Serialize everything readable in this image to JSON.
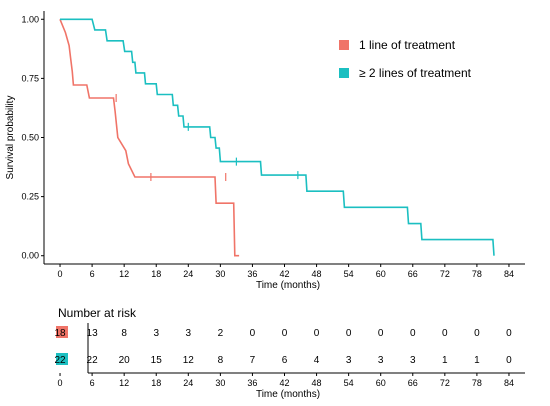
{
  "chart_data": [
    {
      "type": "line",
      "subtype": "kaplan-meier",
      "xlabel": "Time (months)",
      "ylabel": "Survival probability",
      "xlim": [
        -3,
        87
      ],
      "ylim": [
        -0.035,
        1.035
      ],
      "x_ticks": [
        0,
        6,
        12,
        18,
        24,
        30,
        36,
        42,
        48,
        54,
        60,
        66,
        72,
        78,
        84
      ],
      "y_ticks": [
        0.0,
        0.25,
        0.5,
        0.75,
        1.0
      ],
      "y_tick_labels": [
        "0.00",
        "0.25",
        "0.50",
        "0.75",
        "1.00"
      ],
      "grid": false,
      "legend": "top-right",
      "series": [
        {
          "name": "1 line of treatment",
          "color": "#f07468",
          "points": [
            [
              0,
              1.0
            ],
            [
              1,
              0.944
            ],
            [
              1.7,
              0.889
            ],
            [
              2,
              0.833
            ],
            [
              2.3,
              0.778
            ],
            [
              2.5,
              0.722
            ],
            [
              5,
              0.722
            ],
            [
              5.5,
              0.667
            ],
            [
              10,
              0.667
            ],
            [
              10.3,
              0.611
            ],
            [
              10.8,
              0.5
            ],
            [
              12.3,
              0.444
            ],
            [
              12.8,
              0.389
            ],
            [
              14,
              0.333
            ],
            [
              29,
              0.333
            ],
            [
              29.2,
              0.222
            ],
            [
              32.5,
              0.222
            ],
            [
              32.7,
              0.0
            ],
            [
              33.5,
              0.0
            ]
          ],
          "censor": [
            [
              10.5,
              0.667
            ],
            [
              17,
              0.333
            ],
            [
              31,
              0.333
            ]
          ]
        },
        {
          "name": "≥ 2 lines of treatment",
          "color": "#1bbfc1",
          "points": [
            [
              0,
              1.0
            ],
            [
              6,
              1.0
            ],
            [
              6.5,
              0.955
            ],
            [
              8.5,
              0.955
            ],
            [
              8.8,
              0.909
            ],
            [
              11.8,
              0.909
            ],
            [
              12.1,
              0.864
            ],
            [
              13.4,
              0.864
            ],
            [
              13.6,
              0.818
            ],
            [
              14,
              0.818
            ],
            [
              14.2,
              0.773
            ],
            [
              15.8,
              0.773
            ],
            [
              16,
              0.727
            ],
            [
              18,
              0.727
            ],
            [
              18.2,
              0.682
            ],
            [
              21,
              0.682
            ],
            [
              21.2,
              0.636
            ],
            [
              22,
              0.636
            ],
            [
              22.2,
              0.591
            ],
            [
              23,
              0.591
            ],
            [
              23.2,
              0.545
            ],
            [
              28,
              0.545
            ],
            [
              28.2,
              0.5
            ],
            [
              29,
              0.5
            ],
            [
              29.2,
              0.455
            ],
            [
              29.8,
              0.455
            ],
            [
              30,
              0.398
            ],
            [
              37.5,
              0.398
            ],
            [
              37.7,
              0.341
            ],
            [
              46,
              0.341
            ],
            [
              46.2,
              0.273
            ],
            [
              53,
              0.273
            ],
            [
              53.2,
              0.205
            ],
            [
              65,
              0.205
            ],
            [
              65.2,
              0.136
            ],
            [
              67.5,
              0.136
            ],
            [
              67.7,
              0.068
            ],
            [
              81,
              0.068
            ],
            [
              81.2,
              0.0
            ]
          ],
          "censor": [
            [
              24,
              0.545
            ],
            [
              33,
              0.398
            ],
            [
              44.5,
              0.341
            ]
          ]
        }
      ]
    },
    {
      "type": "table",
      "title": "Number at risk",
      "xlabel": "Time (months)",
      "x_ticks": [
        0,
        6,
        12,
        18,
        24,
        30,
        36,
        42,
        48,
        54,
        60,
        66,
        72,
        78,
        84
      ],
      "rows": [
        {
          "color": "#f07468",
          "values": [
            18,
            13,
            8,
            3,
            3,
            2,
            0,
            0,
            0,
            0,
            0,
            0,
            0,
            0,
            0
          ]
        },
        {
          "color": "#1bbfc1",
          "values": [
            22,
            22,
            20,
            15,
            12,
            8,
            7,
            6,
            4,
            3,
            3,
            3,
            1,
            1,
            0
          ]
        }
      ]
    }
  ]
}
